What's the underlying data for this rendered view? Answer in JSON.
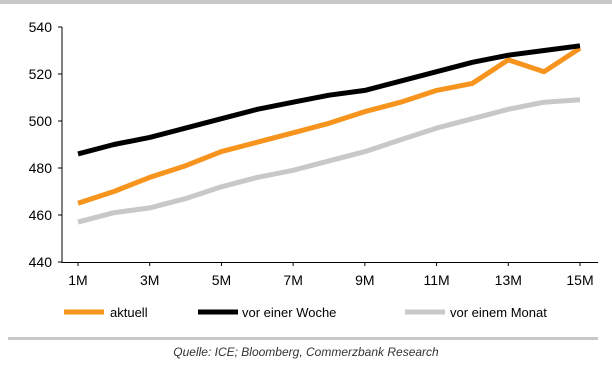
{
  "chart_data": {
    "type": "line",
    "title": "",
    "xlabel": "",
    "ylabel": "",
    "categories": [
      "1M",
      "2M",
      "3M",
      "4M",
      "5M",
      "6M",
      "7M",
      "8M",
      "9M",
      "10M",
      "11M",
      "12M",
      "13M",
      "14M",
      "15M"
    ],
    "x_tick_labels": [
      "1M",
      "3M",
      "5M",
      "7M",
      "9M",
      "11M",
      "13M",
      "15M"
    ],
    "ylim": [
      440,
      540
    ],
    "y_ticks": [
      440,
      460,
      480,
      500,
      520,
      540
    ],
    "grid": false,
    "legend_position": "bottom",
    "series": [
      {
        "name": "aktuell",
        "color": "#f7941d",
        "values": [
          465,
          470,
          476,
          481,
          487,
          491,
          495,
          499,
          504,
          508,
          513,
          516,
          526,
          521,
          531
        ]
      },
      {
        "name": "vor einer Woche",
        "color": "#000000",
        "values": [
          486,
          490,
          493,
          497,
          501,
          505,
          508,
          511,
          513,
          517,
          521,
          525,
          528,
          530,
          532
        ]
      },
      {
        "name": "vor einem Monat",
        "color": "#c8c8c8",
        "values": [
          457,
          461,
          463,
          467,
          472,
          476,
          479,
          483,
          487,
          492,
          497,
          501,
          505,
          508,
          509
        ]
      }
    ]
  },
  "source": "Quelle: ICE; Bloomberg, Commerzbank Research"
}
